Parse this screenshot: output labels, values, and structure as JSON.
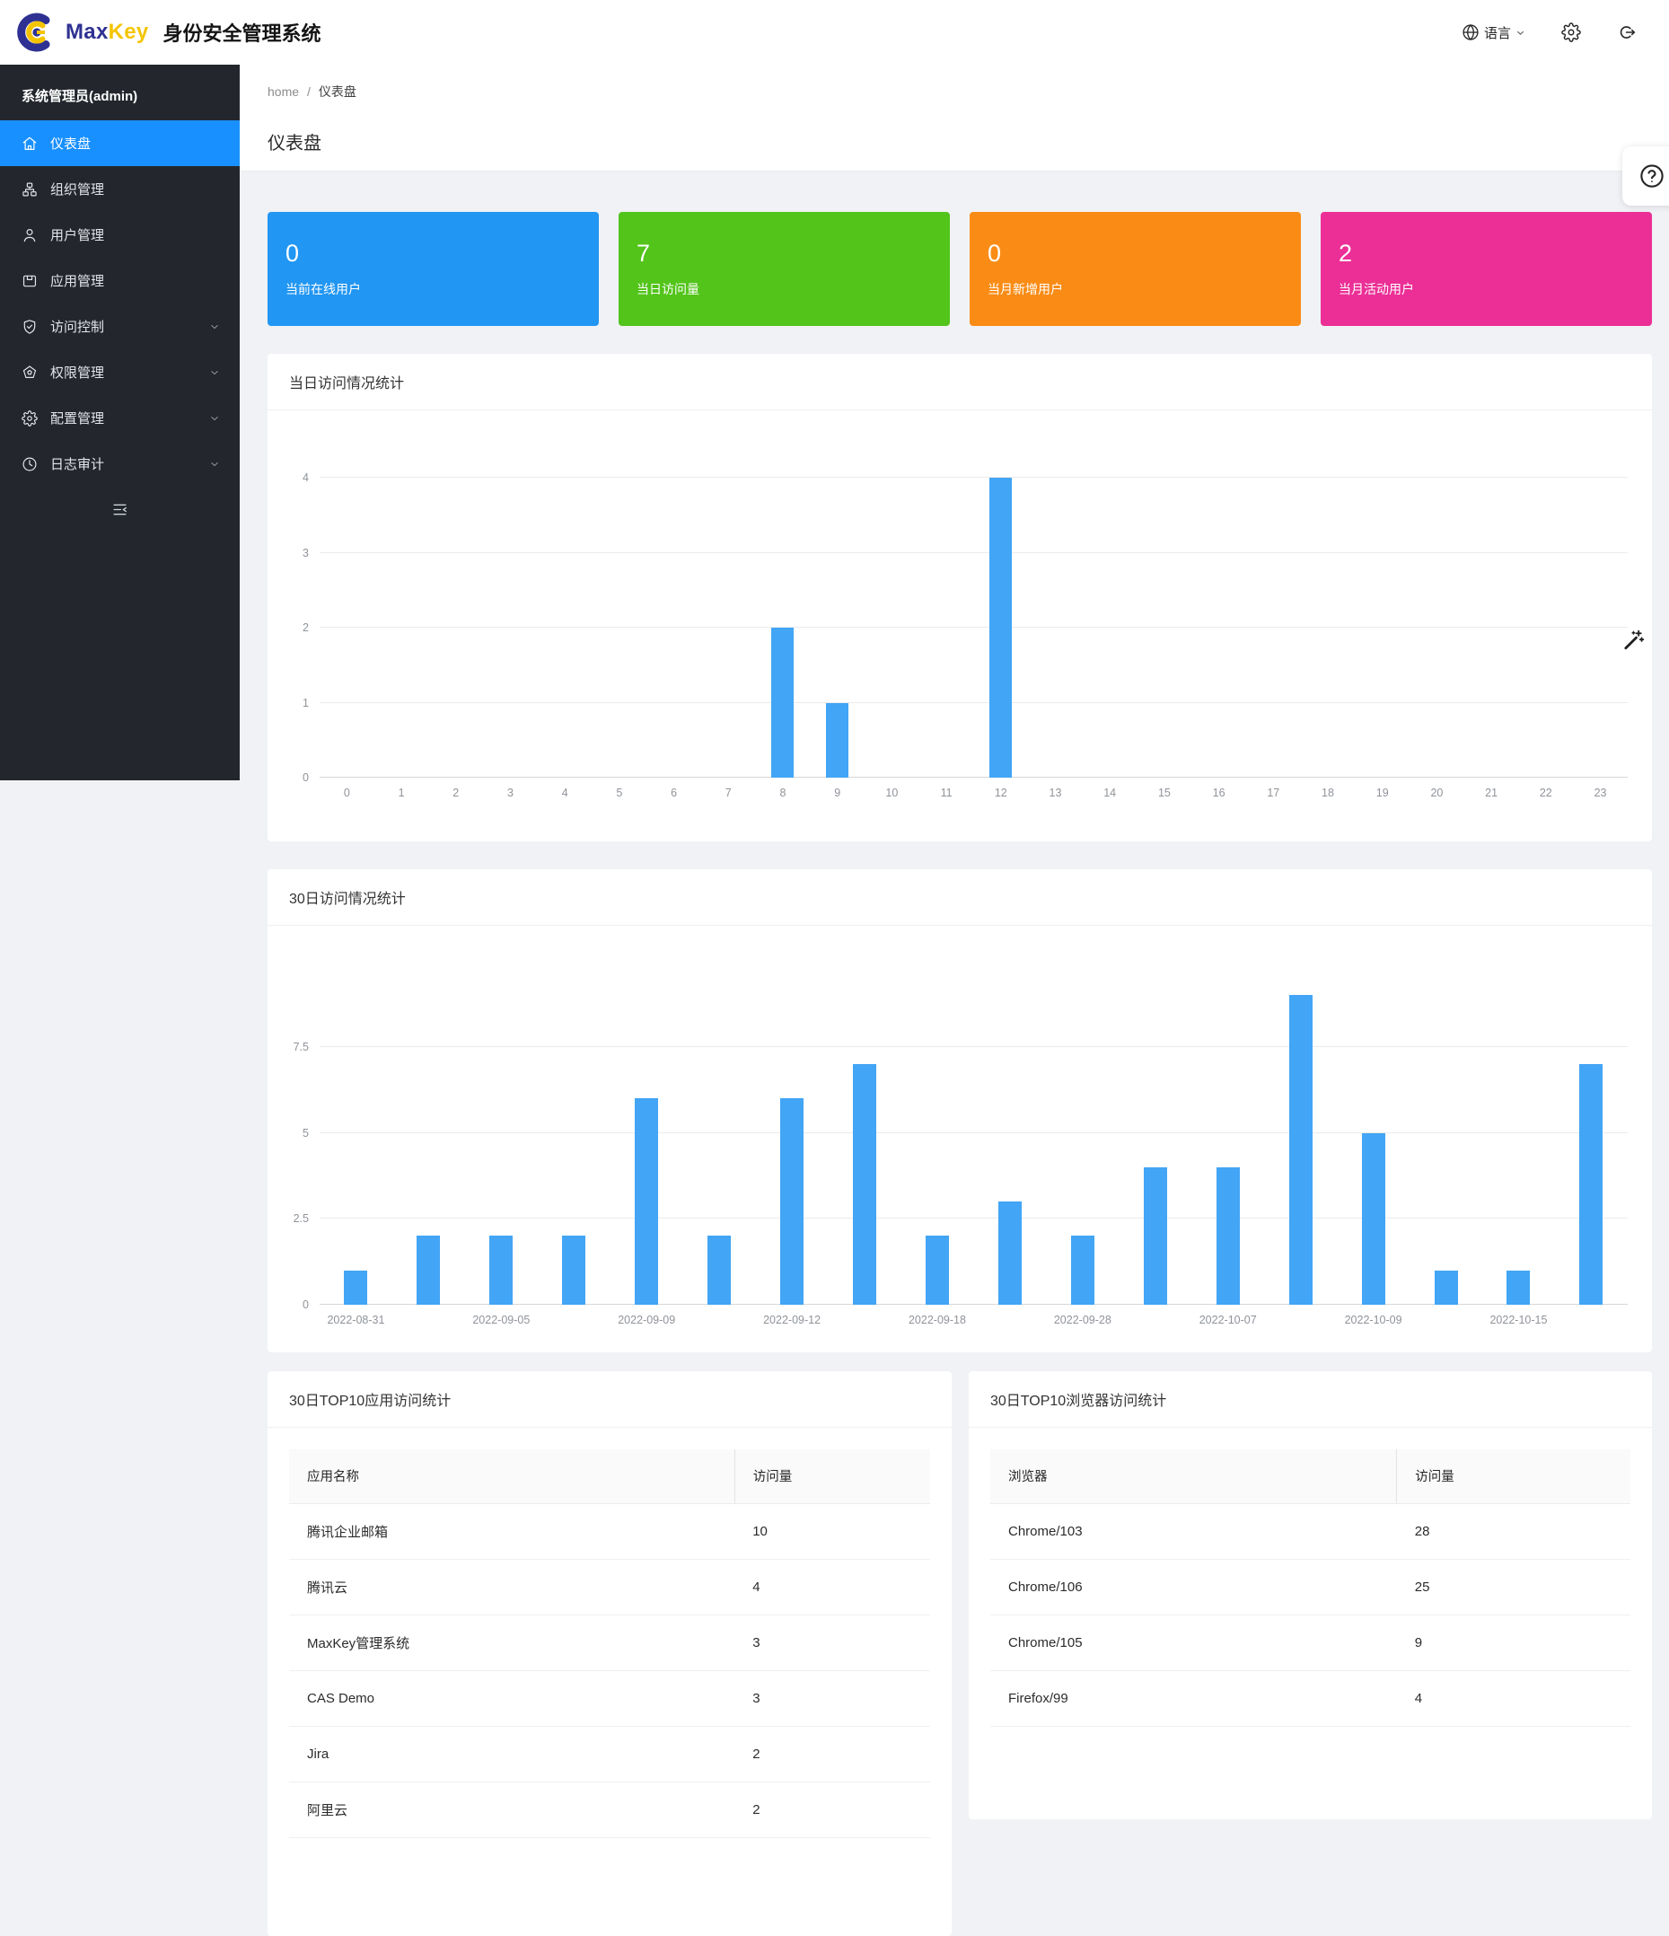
{
  "header": {
    "brand_max": "Max",
    "brand_key": "Key",
    "brand_suffix": "身份安全管理系统",
    "language_label": "语言"
  },
  "sidebar": {
    "admin_label": "系统管理员(admin)",
    "background_color": "#23272d",
    "active_color": "#1890ff",
    "collapse_icon": "menu-fold-icon",
    "items": [
      {
        "key": "dashboard",
        "label": "仪表盘",
        "icon": "home-icon",
        "active": true,
        "chevron": false
      },
      {
        "key": "organizations",
        "label": "组织管理",
        "icon": "org-icon",
        "active": false,
        "chevron": false
      },
      {
        "key": "users",
        "label": "用户管理",
        "icon": "user-icon",
        "active": false,
        "chevron": false
      },
      {
        "key": "applications",
        "label": "应用管理",
        "icon": "app-icon",
        "active": false,
        "chevron": false
      },
      {
        "key": "access-control",
        "label": "访问控制",
        "icon": "shield-check-icon",
        "active": false,
        "chevron": true
      },
      {
        "key": "permissions",
        "label": "权限管理",
        "icon": "badge-icon",
        "active": false,
        "chevron": true
      },
      {
        "key": "configuration",
        "label": "配置管理",
        "icon": "gear-icon",
        "active": false,
        "chevron": true
      },
      {
        "key": "audit-log",
        "label": "日志审计",
        "icon": "clock-icon",
        "active": false,
        "chevron": true
      }
    ]
  },
  "breadcrumb": {
    "home": "home",
    "separator": "/",
    "current": "仪表盘"
  },
  "page": {
    "title": "仪表盘"
  },
  "stats": [
    {
      "value": "0",
      "label": "当前在线用户",
      "color": "#2196f3"
    },
    {
      "value": "7",
      "label": "当日访问量",
      "color": "#52c41a"
    },
    {
      "value": "0",
      "label": "当月新增用户",
      "color": "#fa8c16"
    },
    {
      "value": "2",
      "label": "当月活动用户",
      "color": "#eb2f96"
    }
  ],
  "chart_data": [
    {
      "type": "bar",
      "title": "当日访问情况统计",
      "categories": [
        "0",
        "1",
        "2",
        "3",
        "4",
        "5",
        "6",
        "7",
        "8",
        "9",
        "10",
        "11",
        "12",
        "13",
        "14",
        "15",
        "16",
        "17",
        "18",
        "19",
        "20",
        "21",
        "22",
        "23"
      ],
      "values": [
        0,
        0,
        0,
        0,
        0,
        0,
        0,
        0,
        2,
        1,
        0,
        0,
        4,
        0,
        0,
        0,
        0,
        0,
        0,
        0,
        0,
        0,
        0,
        0
      ],
      "xlabel": "",
      "ylabel": "",
      "ylim": [
        0,
        4
      ],
      "yticks": [
        0,
        1,
        2,
        3,
        4
      ],
      "grid": true,
      "legend": "none",
      "bar_color": "#42a5f5"
    },
    {
      "type": "bar",
      "title": "30日访问情况统计",
      "categories": [
        "2022-08-31",
        "",
        "2022-09-05",
        "",
        "2022-09-09",
        "",
        "2022-09-12",
        "",
        "2022-09-18",
        "",
        "2022-09-28",
        "",
        "2022-10-07",
        "",
        "2022-10-09",
        "",
        "2022-10-15",
        ""
      ],
      "x_tick_labels": [
        "2022-08-31",
        "",
        "2022-09-05",
        "",
        "2022-09-09",
        "",
        "2022-09-12",
        "",
        "2022-09-18",
        "",
        "2022-09-28",
        "",
        "2022-10-07",
        "",
        "2022-10-09",
        "",
        "2022-10-15",
        ""
      ],
      "values": [
        1,
        2,
        2,
        2,
        6,
        2,
        6,
        7,
        2,
        3,
        2,
        4,
        4,
        9,
        5,
        1,
        1,
        7
      ],
      "xlabel": "",
      "ylabel": "",
      "ylim": [
        0,
        10
      ],
      "yticks": [
        0,
        2.5,
        5,
        7.5
      ],
      "grid": true,
      "legend": "none",
      "bar_color": "#42a5f5"
    }
  ],
  "tables": [
    {
      "title": "30日TOP10应用访问统计",
      "headers": [
        "应用名称",
        "访问量"
      ],
      "rows": [
        [
          "腾讯企业邮箱",
          "10"
        ],
        [
          "腾讯云",
          "4"
        ],
        [
          "MaxKey管理系统",
          "3"
        ],
        [
          "CAS Demo",
          "3"
        ],
        [
          "Jira",
          "2"
        ],
        [
          "阿里云",
          "2"
        ]
      ]
    },
    {
      "title": "30日TOP10浏览器访问统计",
      "headers": [
        "浏览器",
        "访问量"
      ],
      "rows": [
        [
          "Chrome/103",
          "28"
        ],
        [
          "Chrome/106",
          "25"
        ],
        [
          "Chrome/105",
          "9"
        ],
        [
          "Firefox/99",
          "4"
        ]
      ]
    }
  ],
  "floating": {
    "help_icon": "question-circle-icon",
    "theme_icon": "magic-wand-icon"
  }
}
